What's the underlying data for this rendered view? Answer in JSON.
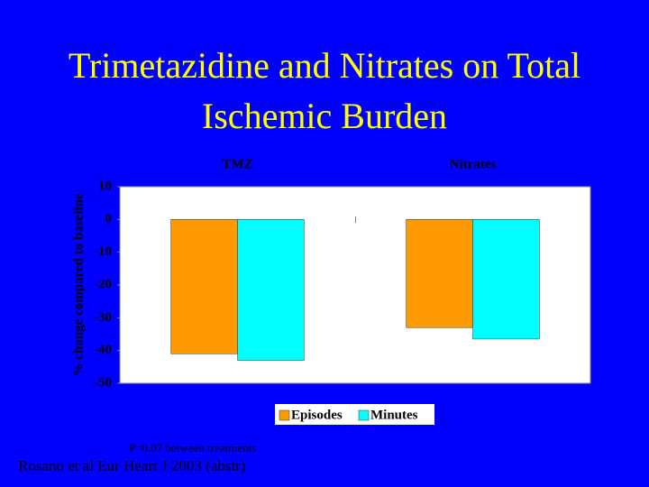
{
  "chart_data": {
    "type": "bar",
    "title": "Trimetazidine and Nitrates on Total Ischemic Burden",
    "y_label": "% change compared to baseline",
    "categories": [
      "TMZ",
      "Nitrates"
    ],
    "series": [
      {
        "name": "Episodes",
        "color": "#ff9900",
        "values": [
          -41,
          -33
        ]
      },
      {
        "name": "Minutes",
        "color": "#00ffff",
        "values": [
          -43,
          -36.5
        ]
      }
    ],
    "ylim": [
      -50,
      10
    ],
    "yticks": [
      10,
      0,
      -10,
      -20,
      -30,
      -40,
      -50
    ],
    "grid": false,
    "legend": "bottom",
    "annotation": "P=0.07 between treatments",
    "source": "Rosano et al Eur Heart J 2003 (abstr)"
  }
}
